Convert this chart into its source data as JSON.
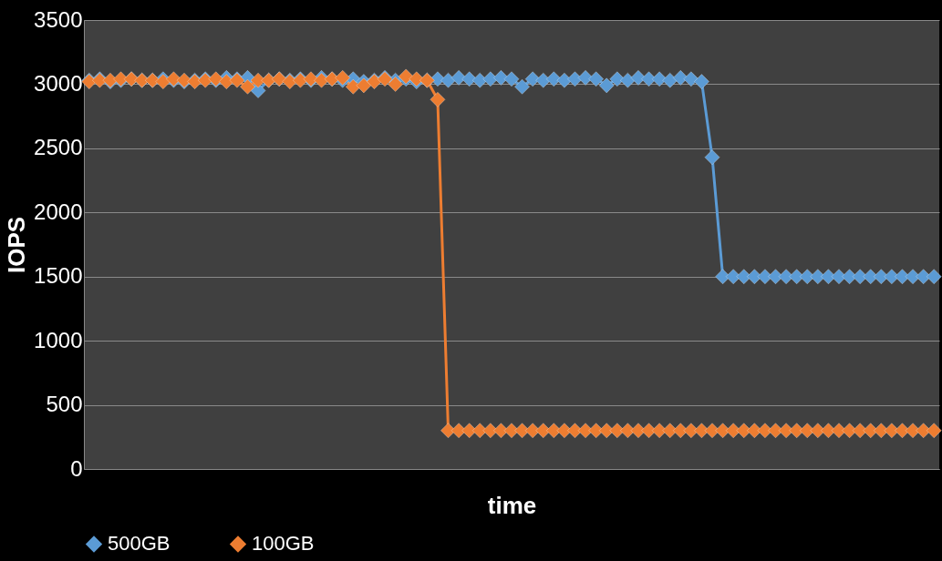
{
  "chart_data": {
    "type": "line",
    "xlabel": "time",
    "ylabel": "IOPS",
    "categories": [
      null,
      null,
      null,
      null,
      null,
      null,
      null,
      null,
      null,
      null,
      null,
      null,
      null,
      null,
      null,
      null,
      null,
      null,
      null,
      null,
      null,
      null,
      null,
      null,
      null,
      null,
      null,
      null,
      null,
      null,
      null,
      null,
      null,
      null,
      null,
      null,
      null,
      null,
      null,
      null,
      null,
      null,
      null,
      null,
      null,
      null,
      null,
      null,
      null,
      null,
      null,
      null,
      null,
      null,
      null,
      null,
      null,
      null,
      null,
      null,
      null,
      null,
      null,
      null,
      null,
      null,
      null,
      null,
      null,
      null,
      null,
      null,
      null,
      null,
      null,
      null,
      null,
      null,
      null,
      null,
      null
    ],
    "series": [
      {
        "name": "500GB",
        "color": "#5b9bd5",
        "values": [
          3030,
          3040,
          3020,
          3030,
          3040,
          3030,
          3030,
          3040,
          3030,
          3020,
          3030,
          3040,
          3030,
          3050,
          3040,
          3050,
          2950,
          3030,
          3040,
          3030,
          3040,
          3030,
          3050,
          3040,
          3030,
          3040,
          3020,
          3030,
          3050,
          3030,
          3040,
          3020,
          3030,
          3040,
          3030,
          3050,
          3040,
          3030,
          3040,
          3050,
          3040,
          2980,
          3040,
          3030,
          3040,
          3030,
          3040,
          3050,
          3040,
          2990,
          3040,
          3030,
          3050,
          3040,
          3040,
          3030,
          3050,
          3040,
          3020,
          2430,
          1500,
          1500,
          1500,
          1500,
          1500,
          1500,
          1500,
          1500,
          1500,
          1500,
          1500,
          1500,
          1500,
          1500,
          1500,
          1500,
          1500,
          1500,
          1500,
          1500,
          1500
        ]
      },
      {
        "name": "100GB",
        "color": "#ed7d31",
        "values": [
          3020,
          3030,
          3030,
          3040,
          3040,
          3030,
          3030,
          3020,
          3040,
          3030,
          3020,
          3030,
          3040,
          3020,
          3030,
          2980,
          3030,
          3030,
          3040,
          3020,
          3030,
          3040,
          3030,
          3040,
          3050,
          2980,
          2990,
          3020,
          3040,
          3000,
          3060,
          3040,
          3030,
          2880,
          300,
          300,
          300,
          300,
          300,
          300,
          300,
          300,
          300,
          300,
          300,
          300,
          300,
          300,
          300,
          300,
          300,
          300,
          300,
          300,
          300,
          300,
          300,
          300,
          300,
          300,
          300,
          300,
          300,
          300,
          300,
          300,
          300,
          300,
          300,
          300,
          300,
          300,
          300,
          300,
          300,
          300,
          300,
          300,
          300,
          300,
          300
        ]
      }
    ],
    "ylim": [
      0,
      3500
    ],
    "yticks": [
      0,
      500,
      1000,
      1500,
      2000,
      2500,
      3000,
      3500
    ],
    "grid": "y",
    "legend": "bottom",
    "marker": "diamond",
    "line_style": "solid"
  }
}
